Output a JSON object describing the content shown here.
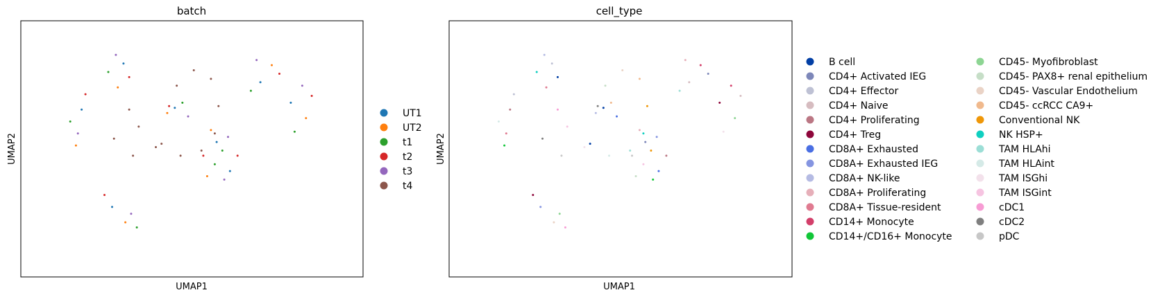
{
  "chart_data": [
    {
      "type": "scatter",
      "title": "batch",
      "xlabel": "UMAP1",
      "ylabel": "UMAP2",
      "grid": false,
      "ticks": false,
      "legend_placement": "right",
      "legend": [
        {
          "name": "UT1",
          "color": "#1f77b4"
        },
        {
          "name": "UT2",
          "color": "#ff7f0e"
        },
        {
          "name": "t1",
          "color": "#2ca02c"
        },
        {
          "name": "t2",
          "color": "#d62728"
        },
        {
          "name": "t3",
          "color": "#9467bd"
        },
        {
          "name": "t4",
          "color": "#8c564b"
        }
      ],
      "series": [
        {
          "name": "UT1",
          "points": [
            [
              0.1,
              0.9
            ],
            [
              2.3,
              -1.1
            ],
            [
              -2.6,
              3.5
            ],
            [
              4.6,
              2.4
            ],
            [
              -4.8,
              0.8
            ],
            [
              6.2,
              1.2
            ],
            [
              3.0,
              -2.8
            ],
            [
              -3.2,
              -4.9
            ]
          ]
        },
        {
          "name": "UT2",
          "points": [
            [
              -0.3,
              0.6
            ],
            [
              2.0,
              -0.4
            ],
            [
              -2.9,
              2.1
            ],
            [
              5.2,
              3.4
            ],
            [
              -5.1,
              -1.3
            ],
            [
              7.0,
              0.3
            ],
            [
              1.8,
              -3.1
            ],
            [
              -2.5,
              -5.8
            ]
          ]
        },
        {
          "name": "t1",
          "points": [
            [
              0.5,
              1.2
            ],
            [
              2.6,
              -1.6
            ],
            [
              -3.4,
              3.0
            ],
            [
              4.1,
              1.9
            ],
            [
              -5.4,
              0.1
            ],
            [
              6.4,
              -0.5
            ],
            [
              2.2,
              -2.4
            ],
            [
              -1.9,
              -6.1
            ]
          ]
        },
        {
          "name": "t2",
          "points": [
            [
              -0.2,
              1.0
            ],
            [
              1.6,
              -1.9
            ],
            [
              -2.3,
              2.7
            ],
            [
              5.6,
              2.9
            ],
            [
              -4.6,
              1.7
            ],
            [
              7.3,
              1.6
            ],
            [
              3.4,
              -1.9
            ],
            [
              -3.6,
              -4.2
            ]
          ]
        },
        {
          "name": "t3",
          "points": [
            [
              0.8,
              0.4
            ],
            [
              2.9,
              -0.8
            ],
            [
              -3.0,
              4.0
            ],
            [
              4.4,
              3.7
            ],
            [
              -5.0,
              -0.6
            ],
            [
              6.8,
              2.2
            ],
            [
              2.7,
              -3.3
            ],
            [
              -2.2,
              -5.3
            ]
          ]
        },
        {
          "name": "t4",
          "points": [
            [
              0.2,
              2.2
            ],
            [
              1.1,
              3.1
            ],
            [
              2.0,
              2.6
            ],
            [
              2.4,
              1.0
            ],
            [
              2.2,
              -0.6
            ],
            [
              1.5,
              -1.6
            ],
            [
              0.4,
              -1.9
            ],
            [
              -0.9,
              -1.4
            ],
            [
              -1.8,
              -0.2
            ],
            [
              -2.3,
              0.8
            ],
            [
              -3.1,
              -0.9
            ],
            [
              -2.1,
              -1.9
            ],
            [
              -0.6,
              -1.2
            ]
          ]
        }
      ]
    },
    {
      "type": "scatter",
      "title": "cell_type",
      "xlabel": "UMAP1",
      "ylabel": "UMAP2",
      "grid": false,
      "ticks": false,
      "legend_placement": "right",
      "legend": [
        {
          "name": "B cell",
          "color": "#023fa5"
        },
        {
          "name": "CD4+ Activated IEG",
          "color": "#7d87b9"
        },
        {
          "name": "CD4+ Effector",
          "color": "#bec1d4"
        },
        {
          "name": "CD4+ Naive",
          "color": "#d6bcc0"
        },
        {
          "name": "CD4+ Proliferating",
          "color": "#bb7784"
        },
        {
          "name": "CD4+ Treg",
          "color": "#8e063b"
        },
        {
          "name": "CD8A+ Exhausted",
          "color": "#4a6fe3"
        },
        {
          "name": "CD8A+ Exhausted IEG",
          "color": "#8595e1"
        },
        {
          "name": "CD8A+ NK-like",
          "color": "#b5bbe3"
        },
        {
          "name": "CD8A+ Proliferating",
          "color": "#e6afb9"
        },
        {
          "name": "CD8A+ Tissue-resident",
          "color": "#e07b91"
        },
        {
          "name": "CD14+ Monocyte",
          "color": "#d33f6a"
        },
        {
          "name": "CD14+/CD16+ Monocyte",
          "color": "#11c638"
        },
        {
          "name": "CD45- Myofibroblast",
          "color": "#8dd593"
        },
        {
          "name": "CD45- PAX8+ renal epithelium",
          "color": "#c6dec7"
        },
        {
          "name": "CD45- Vascular Endothelium",
          "color": "#ead3c6"
        },
        {
          "name": "CD45- ccRCC CA9+",
          "color": "#f0b98d"
        },
        {
          "name": "Conventional NK",
          "color": "#ef9708"
        },
        {
          "name": "NK HSP+",
          "color": "#0fcfc0"
        },
        {
          "name": "TAM HLAhi",
          "color": "#9cded6"
        },
        {
          "name": "TAM HLAint",
          "color": "#d5eae7"
        },
        {
          "name": "TAM ISGhi",
          "color": "#f3e1eb"
        },
        {
          "name": "TAM ISGint",
          "color": "#f6c4e1"
        },
        {
          "name": "cDC1",
          "color": "#f79cd4"
        },
        {
          "name": "cDC2",
          "color": "#7f7f7f"
        },
        {
          "name": "pDC",
          "color": "#c7c7c7"
        }
      ]
    }
  ]
}
